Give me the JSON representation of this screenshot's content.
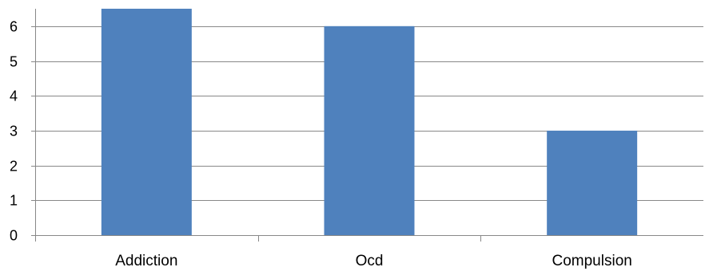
{
  "chart_data": {
    "type": "bar",
    "categories": [
      "Addiction",
      "Ocd",
      "Compulsion"
    ],
    "values": [
      6.5,
      6,
      3
    ],
    "ylim": [
      0,
      6.5
    ],
    "yticks": [
      0,
      1,
      2,
      3,
      4,
      5,
      6
    ],
    "ytick_labels": [
      "0",
      "1",
      "2",
      "3",
      "4",
      "5",
      "6"
    ],
    "grid": true,
    "legend": "none",
    "bar_color": "#4F81BD",
    "grid_color": "#888888",
    "axis_color": "#888888"
  }
}
